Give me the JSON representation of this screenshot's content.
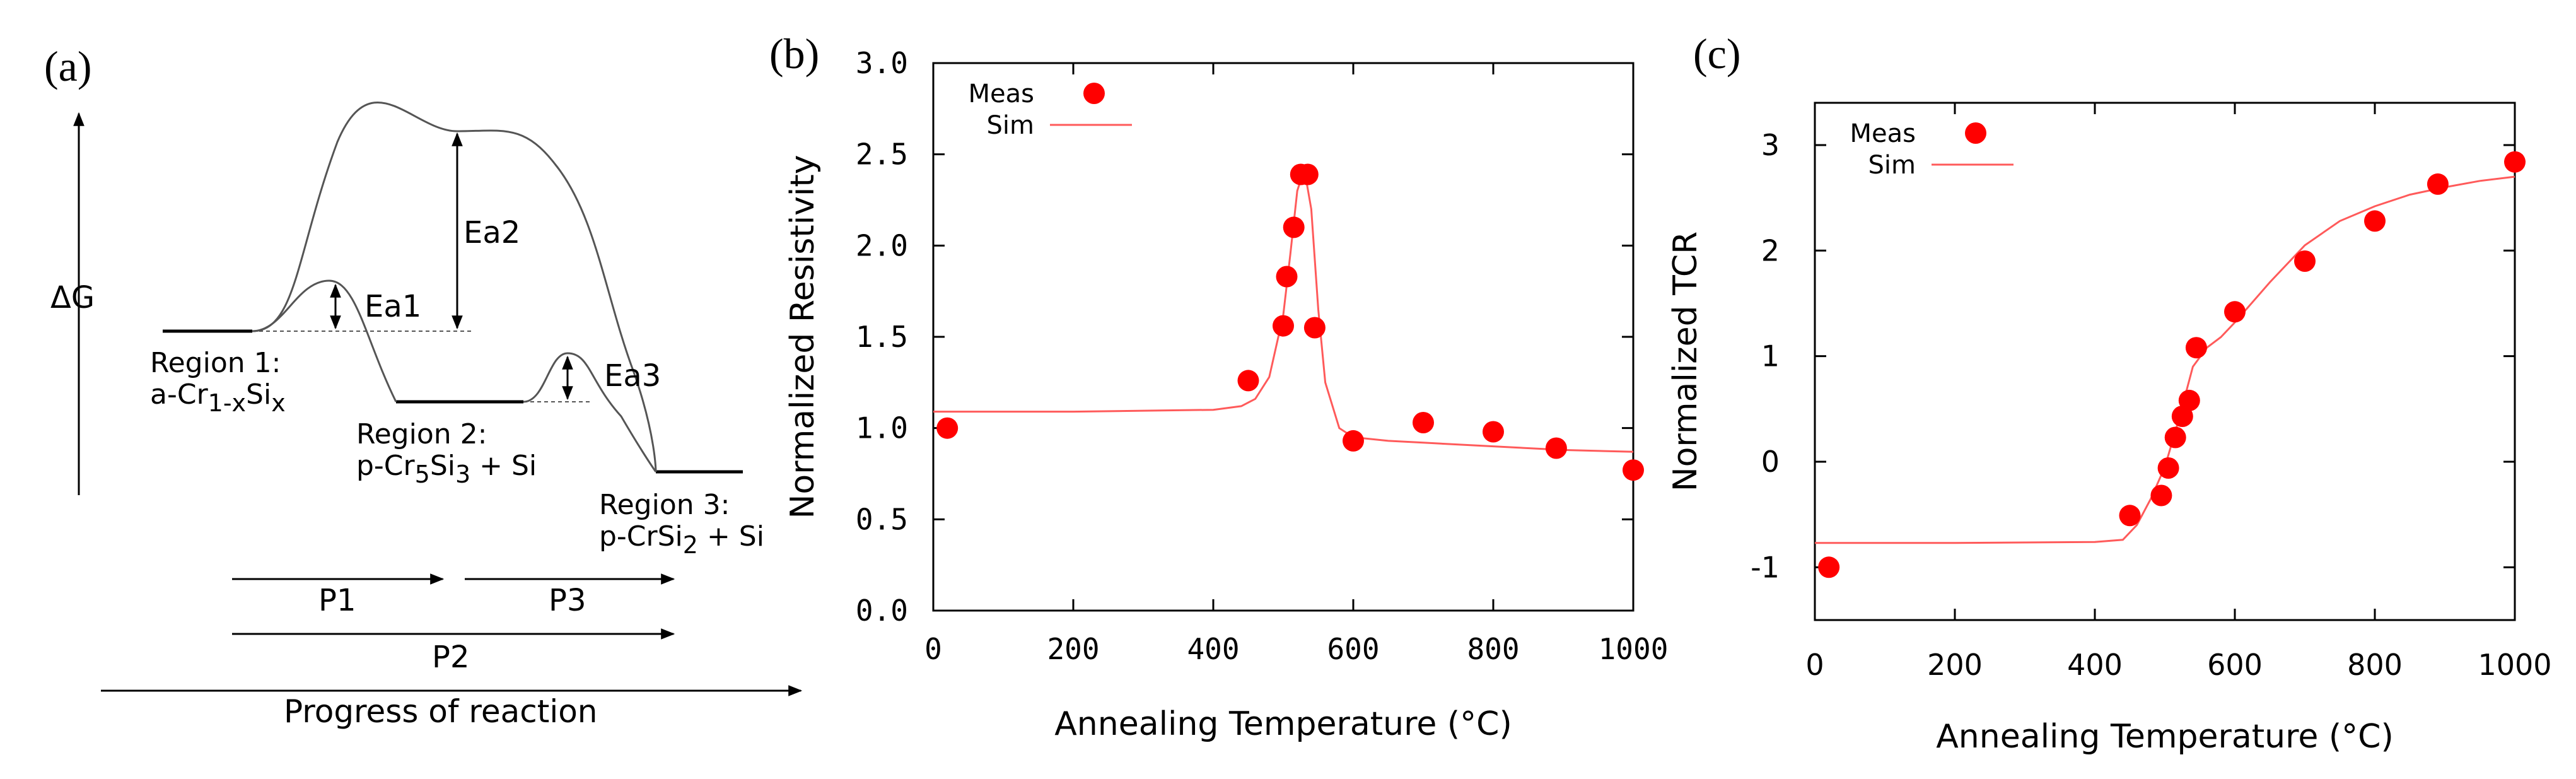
{
  "colors": {
    "data": "#ff0000",
    "sim": "#ff5a5a",
    "axis": "#000000",
    "curve": "#555555"
  },
  "panel_a": {
    "panel_label": "(a)",
    "y_axis_label": "ΔG",
    "x_axis_label": "Progress of reaction",
    "barriers": [
      "Ea1",
      "Ea2",
      "Ea3"
    ],
    "regions": [
      {
        "title": "Region 1:",
        "formula": [
          [
            "a-Cr",
            false
          ],
          [
            "1-x",
            true
          ],
          [
            "Si",
            false
          ],
          [
            "x",
            true
          ]
        ]
      },
      {
        "title": "Region 2:",
        "formula": [
          [
            "p-Cr",
            false
          ],
          [
            "5",
            true
          ],
          [
            "Si",
            false
          ],
          [
            "3",
            true
          ],
          [
            " + Si",
            false
          ]
        ]
      },
      {
        "title": "Region 3:",
        "formula": [
          [
            "p-CrSi",
            false
          ],
          [
            "2",
            true
          ],
          [
            " + Si",
            false
          ]
        ]
      }
    ],
    "processes": [
      "P1",
      "P3",
      "P2"
    ]
  },
  "chart_data": [
    {
      "type": "scatter",
      "panel_label": "(b)",
      "title": "",
      "xlabel": "Annealing Temperature (°C)",
      "ylabel": "Normalized Resistivity",
      "xlim": [
        0,
        1000
      ],
      "ylim": [
        0.0,
        3.0
      ],
      "xticks": [
        "0",
        "200",
        "400",
        "600",
        "800",
        "1000"
      ],
      "yticks": [
        "0.0",
        "0.5",
        "1.0",
        "1.5",
        "2.0",
        "2.5",
        "3.0"
      ],
      "legend_position": "top-left",
      "series": [
        {
          "name": "Meas",
          "style": "markers",
          "x": [
            20,
            450,
            500,
            505,
            515,
            525,
            535,
            545,
            600,
            700,
            800,
            890,
            1000
          ],
          "y": [
            1.0,
            1.26,
            1.56,
            1.83,
            2.1,
            2.39,
            2.39,
            1.55,
            0.93,
            1.03,
            0.98,
            0.89,
            0.77
          ]
        },
        {
          "name": "Sim",
          "style": "line",
          "x": [
            0,
            200,
            400,
            440,
            460,
            480,
            500,
            510,
            520,
            530,
            540,
            550,
            560,
            580,
            600,
            650,
            700,
            800,
            900,
            1000
          ],
          "y": [
            1.09,
            1.09,
            1.1,
            1.12,
            1.16,
            1.28,
            1.62,
            1.95,
            2.3,
            2.42,
            2.2,
            1.65,
            1.25,
            1.0,
            0.95,
            0.93,
            0.92,
            0.9,
            0.88,
            0.87
          ]
        }
      ]
    },
    {
      "type": "scatter",
      "panel_label": "(c)",
      "title": "",
      "xlabel": "Annealing Temperature (°C)",
      "ylabel": "Normalized TCR",
      "xlim": [
        0,
        1000
      ],
      "ylim": [
        -1.5,
        3.4
      ],
      "xticks": [
        "0",
        "200",
        "400",
        "600",
        "800",
        "1000"
      ],
      "yticks": [
        "-1",
        "0",
        "1",
        "2",
        "3"
      ],
      "legend_position": "top-left",
      "series": [
        {
          "name": "Meas",
          "style": "markers",
          "x": [
            20,
            450,
            495,
            505,
            515,
            525,
            535,
            545,
            600,
            700,
            800,
            890,
            1000
          ],
          "y": [
            -1.0,
            -0.51,
            -0.32,
            -0.06,
            0.23,
            0.43,
            0.58,
            1.08,
            1.42,
            1.9,
            2.28,
            2.63,
            2.84
          ]
        },
        {
          "name": "Sim",
          "style": "line",
          "x": [
            0,
            200,
            400,
            440,
            460,
            480,
            500,
            520,
            540,
            560,
            580,
            600,
            650,
            700,
            750,
            800,
            850,
            900,
            950,
            1000
          ],
          "y": [
            -0.77,
            -0.77,
            -0.76,
            -0.74,
            -0.6,
            -0.35,
            -0.05,
            0.4,
            0.9,
            1.08,
            1.18,
            1.32,
            1.7,
            2.05,
            2.28,
            2.42,
            2.53,
            2.6,
            2.66,
            2.7
          ]
        }
      ]
    }
  ]
}
